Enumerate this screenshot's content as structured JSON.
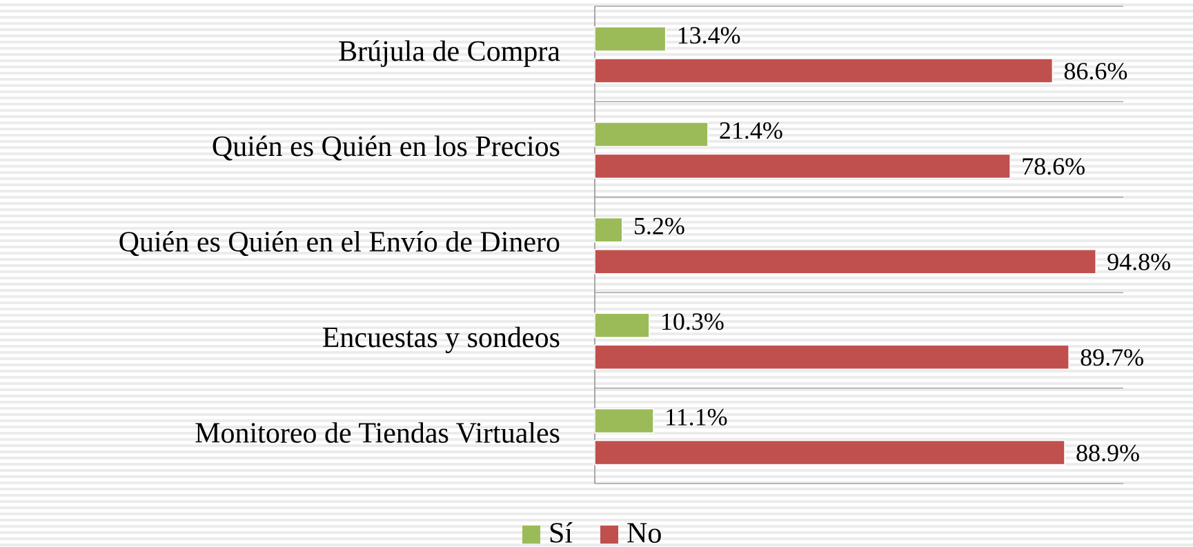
{
  "chart_data": {
    "type": "barh",
    "categories": [
      "Brújula de Compra",
      "Quién es Quién en los Precios",
      "Quién es Quién en el Envío de Dinero",
      "Encuestas y sondeos",
      "Monitoreo de Tiendas Virtuales"
    ],
    "series": [
      {
        "name": "Sí",
        "color": "#9bbb59",
        "values": [
          13.4,
          21.4,
          5.2,
          10.3,
          11.1
        ],
        "value_labels": [
          "13.4%",
          "21.4%",
          "5.2%",
          "10.3%",
          "11.1%"
        ]
      },
      {
        "name": "No",
        "color": "#c0504d",
        "values": [
          86.6,
          78.6,
          94.8,
          89.7,
          88.9
        ],
        "value_labels": [
          "86.6%",
          "78.6%",
          "94.8%",
          "89.7%",
          "88.9%"
        ]
      }
    ],
    "xlim": [
      0,
      100
    ],
    "legend": "bottom"
  }
}
